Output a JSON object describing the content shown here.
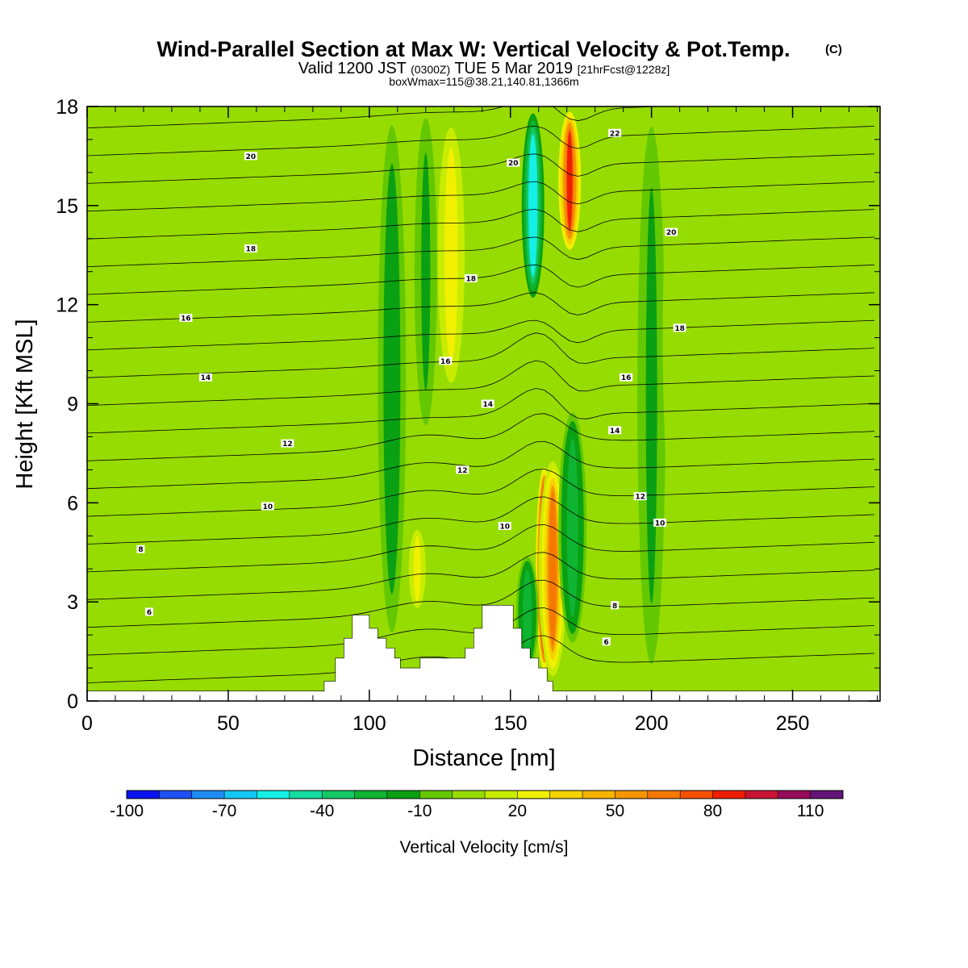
{
  "chart_data": {
    "type": "heatmap",
    "title": "Wind-Parallel Section at Max W: Vertical Velocity & Pot.Temp.",
    "title_mark": "(C)",
    "subtitle_main_a": "Valid 1200 JST",
    "subtitle_utc": "(0300Z)",
    "subtitle_main_b": "TUE 5 Mar 2019",
    "subtitle_fcst": "[21hrFcst@1228z]",
    "subtitle2": "boxWmax=115@38.21,140.81,1366m",
    "xlabel": "Distance [nm]",
    "ylabel": "Height [Kft MSL]",
    "xlim": [
      0,
      281
    ],
    "ylim": [
      0,
      18
    ],
    "xticks": [
      0,
      50,
      100,
      150,
      200,
      250
    ],
    "yticks": [
      0,
      3,
      6,
      9,
      12,
      15,
      18
    ],
    "colorbar": {
      "label": "Vertical Velocity [cm/s]",
      "tick_labels": [
        "-100",
        "-70",
        "-40",
        "-10",
        "20",
        "50",
        "80",
        "110"
      ],
      "tick_values": [
        -100,
        -70,
        -40,
        -10,
        20,
        50,
        80,
        110
      ],
      "min": -100,
      "max": 120,
      "step": 10,
      "colors": [
        "#0a14f0",
        "#1e50f5",
        "#1e8cf5",
        "#14c8f5",
        "#14f0e6",
        "#14dca0",
        "#14c864",
        "#0fb432",
        "#0aa014",
        "#64c800",
        "#96dc00",
        "#c8ec00",
        "#f0f000",
        "#f5d200",
        "#f5b400",
        "#f59600",
        "#f57800",
        "#f55000",
        "#f01e00",
        "#c81432",
        "#960a5a",
        "#641478"
      ]
    },
    "terrain_profile": {
      "x": [
        0,
        84,
        84,
        88,
        88,
        91,
        91,
        94,
        94,
        100,
        100,
        103,
        103,
        106,
        106,
        109,
        109,
        111,
        111,
        118,
        118,
        134,
        134,
        137,
        137,
        140,
        140,
        151,
        151,
        154,
        154,
        157,
        157,
        160,
        160,
        163,
        163,
        165,
        165,
        281
      ],
      "height": [
        0.3,
        0.3,
        0.6,
        0.6,
        1.3,
        1.3,
        1.9,
        1.9,
        2.6,
        2.6,
        2.2,
        2.2,
        1.9,
        1.9,
        1.6,
        1.6,
        1.3,
        1.3,
        1.0,
        1.0,
        1.3,
        1.3,
        1.6,
        1.6,
        2.2,
        2.2,
        2.9,
        2.9,
        2.2,
        2.2,
        1.6,
        1.6,
        1.3,
        1.3,
        1.0,
        1.0,
        0.6,
        0.6,
        0.3,
        0.3
      ]
    },
    "velocity_features": [
      {
        "x_center": 162,
        "x_width": 3,
        "y_bottom": 0.7,
        "y_top": 7.3,
        "peak_cm_s": 115,
        "kind": "updraft"
      },
      {
        "x_center": 165,
        "x_width": 5,
        "y_bottom": 0.5,
        "y_top": 7.5,
        "peak_cm_s": 60,
        "kind": "updraft"
      },
      {
        "x_center": 171,
        "x_width": 4,
        "y_bottom": 13.5,
        "y_top": 18,
        "peak_cm_s": 80,
        "kind": "updraft"
      },
      {
        "x_center": 158,
        "x_width": 4,
        "y_bottom": 12.0,
        "y_top": 18,
        "peak_cm_s": -60,
        "kind": "downdraft"
      },
      {
        "x_center": 172,
        "x_width": 5,
        "y_bottom": 1.5,
        "y_top": 9.0,
        "peak_cm_s": -30,
        "kind": "downdraft"
      },
      {
        "x_center": 156,
        "x_width": 4,
        "y_bottom": 0.8,
        "y_top": 4.5,
        "peak_cm_s": -25,
        "kind": "downdraft"
      },
      {
        "x_center": 129,
        "x_width": 6,
        "y_bottom": 9,
        "y_top": 18,
        "peak_cm_s": 25,
        "kind": "updraft"
      },
      {
        "x_center": 117,
        "x_width": 5,
        "y_bottom": 2.5,
        "y_top": 5.5,
        "peak_cm_s": 20,
        "kind": "updraft"
      },
      {
        "x_center": 108,
        "x_width": 5,
        "y_bottom": 1.5,
        "y_top": 18,
        "peak_cm_s": -20,
        "kind": "downdraft"
      },
      {
        "x_center": 120,
        "x_width": 4,
        "y_bottom": 8,
        "y_top": 18,
        "peak_cm_s": -15,
        "kind": "downdraft"
      },
      {
        "x_center": 187,
        "x_width": 5,
        "y_bottom": 6,
        "y_top": 16,
        "peak_cm_s": 5,
        "kind": "updraft"
      },
      {
        "x_center": 200,
        "x_width": 5,
        "y_bottom": 0.5,
        "y_top": 18,
        "peak_cm_s": -15,
        "kind": "downdraft"
      },
      {
        "x_center": 210,
        "x_width": 6,
        "y_bottom": 4,
        "y_top": 18,
        "peak_cm_s": 5,
        "kind": "updraft"
      },
      {
        "x_center": 28,
        "x_width": 6,
        "y_bottom": 9.5,
        "y_top": 15.5,
        "peak_cm_s": 5,
        "kind": "updraft"
      },
      {
        "x_center": 68,
        "x_width": 5,
        "y_bottom": 3.5,
        "y_top": 8.5,
        "peak_cm_s": 5,
        "kind": "updraft"
      },
      {
        "x_center": 250,
        "x_width": 8,
        "y_bottom": 6,
        "y_top": 15,
        "peak_cm_s": 5,
        "kind": "updraft"
      }
    ],
    "theta_contour_labels": [
      {
        "value": "20",
        "x": 58,
        "y": 16.5
      },
      {
        "value": "18",
        "x": 58,
        "y": 13.7
      },
      {
        "value": "16",
        "x": 35,
        "y": 11.6
      },
      {
        "value": "14",
        "x": 42,
        "y": 9.8
      },
      {
        "value": "12",
        "x": 71,
        "y": 7.8
      },
      {
        "value": "10",
        "x": 64,
        "y": 5.9
      },
      {
        "value": "8",
        "x": 19,
        "y": 4.6
      },
      {
        "value": "6",
        "x": 22,
        "y": 2.7
      },
      {
        "value": "18",
        "x": 136,
        "y": 12.8
      },
      {
        "value": "16",
        "x": 127,
        "y": 10.3
      },
      {
        "value": "14",
        "x": 142,
        "y": 9.0
      },
      {
        "value": "12",
        "x": 133,
        "y": 7.0
      },
      {
        "value": "10",
        "x": 148,
        "y": 5.3
      },
      {
        "value": "20",
        "x": 151,
        "y": 16.3
      },
      {
        "value": "22",
        "x": 187,
        "y": 17.2
      },
      {
        "value": "20",
        "x": 207,
        "y": 14.2
      },
      {
        "value": "18",
        "x": 210,
        "y": 11.3
      },
      {
        "value": "16",
        "x": 191,
        "y": 9.8
      },
      {
        "value": "14",
        "x": 187,
        "y": 8.2
      },
      {
        "value": "12",
        "x": 196,
        "y": 6.2
      },
      {
        "value": "10",
        "x": 203,
        "y": 5.4
      },
      {
        "value": "8",
        "x": 187,
        "y": 2.9
      },
      {
        "value": "6",
        "x": 184,
        "y": 1.8
      }
    ]
  }
}
